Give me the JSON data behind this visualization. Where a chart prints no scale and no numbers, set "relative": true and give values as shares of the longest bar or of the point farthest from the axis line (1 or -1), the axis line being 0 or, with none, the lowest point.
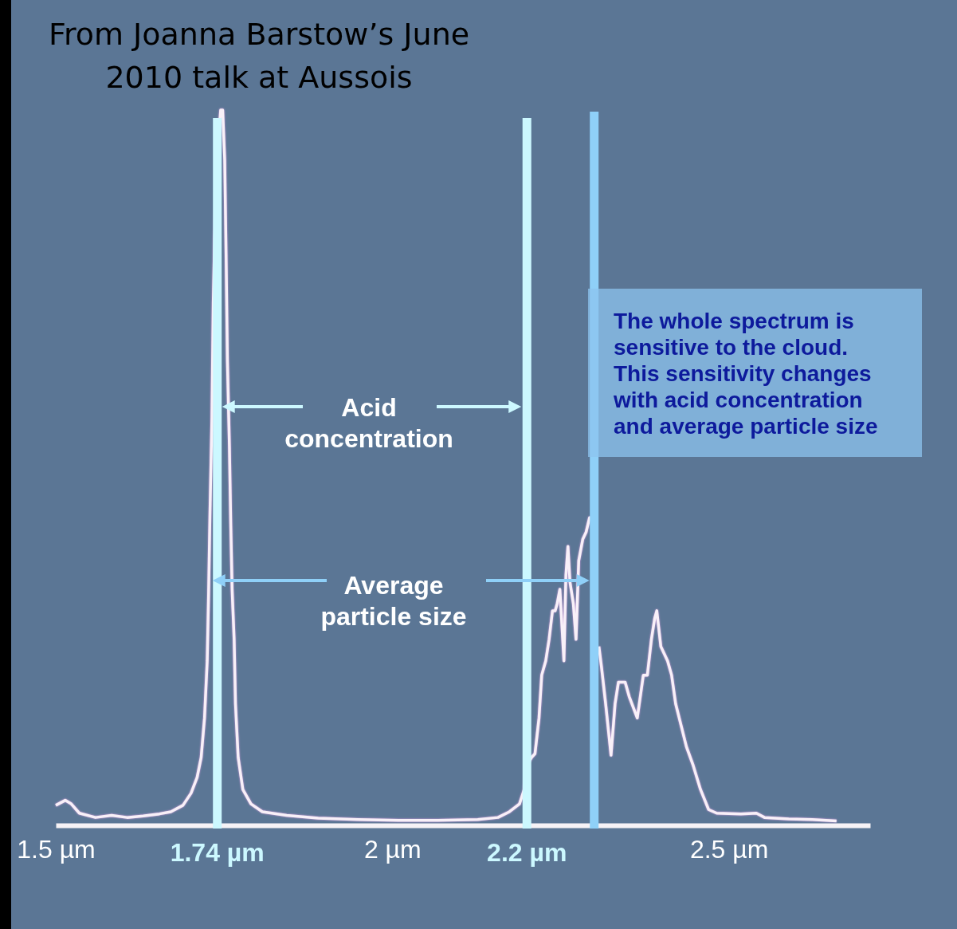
{
  "chart_data": {
    "type": "line",
    "title": "From Joanna Barstow’s June 2010 talk at Aussois",
    "relative": true,
    "xlim": [
      1.5,
      2.71
    ],
    "xticks": [
      {
        "value": 1.5,
        "label": "1.5 µm"
      },
      {
        "value": 2,
        "label": "2 µm"
      },
      {
        "value": 2.5,
        "label": "2.5 µm"
      }
    ],
    "ref_lines": [
      {
        "axis": "x",
        "value": 1.74,
        "label": "1.74 µm",
        "color": "#ccf8ff"
      },
      {
        "axis": "x",
        "value": 2.2,
        "label": "2.2 µm",
        "color": "#ccf8ff"
      },
      {
        "axis": "x",
        "value": 2.3,
        "color": "#8fd0f8"
      }
    ],
    "annotations": [
      "Acid concentration",
      "Average particle size",
      "The whole spectrum is sensitive to the cloud. This sensitivity changes with acid concentration and average particle size"
    ],
    "series": [
      {
        "color": "#f8f0f8",
        "x": [
          1.5,
          1.514,
          1.523,
          1.535,
          1.559,
          1.583,
          1.606,
          1.63,
          1.654,
          1.671,
          1.689,
          1.701,
          1.71,
          1.716,
          1.721,
          1.725,
          1.727,
          1.729,
          1.732,
          1.734,
          1.736,
          1.739,
          1.741,
          1.745,
          1.748,
          1.751,
          1.753,
          1.755,
          1.758,
          1.76,
          1.762,
          1.765,
          1.767,
          1.771,
          1.778,
          1.79,
          1.807,
          1.843,
          1.89,
          1.949,
          2.009,
          2.068,
          2.127,
          2.157,
          2.174,
          2.189,
          2.196,
          2.2,
          2.207,
          2.212,
          2.218,
          2.222,
          2.228,
          2.233,
          2.238,
          2.242,
          2.245,
          2.249,
          2.255,
          2.258,
          2.261,
          2.264,
          2.269,
          2.273,
          2.277,
          2.283,
          2.288,
          2.293,
          2.296,
          2.3,
          2.307,
          2.311,
          2.317,
          2.325,
          2.331,
          2.336,
          2.346,
          2.352,
          2.364,
          2.373,
          2.379,
          2.385,
          2.39,
          2.393,
          2.399,
          2.409,
          2.415,
          2.421,
          2.429,
          2.437,
          2.447,
          2.458,
          2.47,
          2.482,
          2.518,
          2.541,
          2.553,
          2.589,
          2.624,
          2.66
        ],
        "values": [
          0.028,
          0.035,
          0.03,
          0.017,
          0.011,
          0.014,
          0.011,
          0.013,
          0.016,
          0.019,
          0.028,
          0.045,
          0.067,
          0.095,
          0.15,
          0.23,
          0.32,
          0.43,
          0.57,
          0.73,
          0.82,
          0.9,
          0.95,
          1.0,
          1.0,
          0.93,
          0.8,
          0.65,
          0.53,
          0.42,
          0.33,
          0.26,
          0.17,
          0.095,
          0.05,
          0.03,
          0.019,
          0.014,
          0.01,
          0.008,
          0.007,
          0.007,
          0.008,
          0.011,
          0.019,
          0.03,
          0.05,
          0.084,
          0.095,
          0.1,
          0.15,
          0.21,
          0.23,
          0.26,
          0.3,
          0.3,
          0.31,
          0.33,
          0.23,
          0.35,
          0.39,
          0.34,
          0.31,
          0.26,
          0.37,
          0.4,
          0.41,
          0.43,
          0.43,
          null,
          0.25,
          0.22,
          0.17,
          0.098,
          0.17,
          0.2,
          0.2,
          0.18,
          0.15,
          0.21,
          0.21,
          0.26,
          0.29,
          0.3,
          0.25,
          0.23,
          0.21,
          0.17,
          0.14,
          0.11,
          0.084,
          0.05,
          0.022,
          0.017,
          0.016,
          0.017,
          0.011,
          0.009,
          0.008,
          0.006
        ]
      }
    ]
  }
}
